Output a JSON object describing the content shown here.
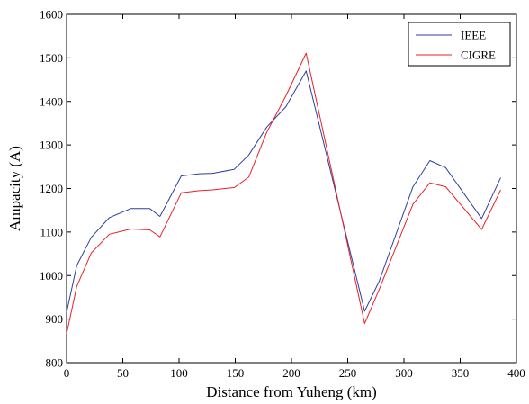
{
  "chart_data": {
    "type": "line",
    "xlabel": "Distance from Yuheng (km)",
    "ylabel": "Ampacity (A)",
    "xlim": [
      0,
      400
    ],
    "ylim": [
      800,
      1600
    ],
    "xticks": [
      0,
      50,
      100,
      150,
      200,
      250,
      300,
      350,
      400
    ],
    "yticks": [
      800,
      900,
      1000,
      1100,
      1200,
      1300,
      1400,
      1500,
      1600
    ],
    "grid": false,
    "legend_position": "top-right",
    "series": [
      {
        "name": "IEEE",
        "color": "#2b3f9e",
        "x": [
          0,
          9,
          22,
          38,
          57,
          74,
          83,
          102,
          118,
          130,
          149,
          162,
          178,
          195,
          213,
          265,
          278,
          308,
          323,
          337,
          369,
          386
        ],
        "y": [
          915,
          1023,
          1088,
          1133,
          1154,
          1154,
          1136,
          1229,
          1234,
          1235,
          1244,
          1277,
          1341,
          1388,
          1470,
          918,
          987,
          1204,
          1264,
          1248,
          1131,
          1225
        ]
      },
      {
        "name": "CIGRE",
        "color": "#e8202a",
        "x": [
          0,
          9,
          22,
          38,
          57,
          74,
          83,
          102,
          118,
          130,
          149,
          162,
          178,
          195,
          213,
          265,
          278,
          308,
          323,
          337,
          369,
          386
        ],
        "y": [
          866,
          975,
          1052,
          1095,
          1107,
          1105,
          1089,
          1190,
          1195,
          1197,
          1202,
          1226,
          1329,
          1413,
          1511,
          890,
          968,
          1164,
          1213,
          1204,
          1106,
          1197
        ]
      }
    ]
  }
}
